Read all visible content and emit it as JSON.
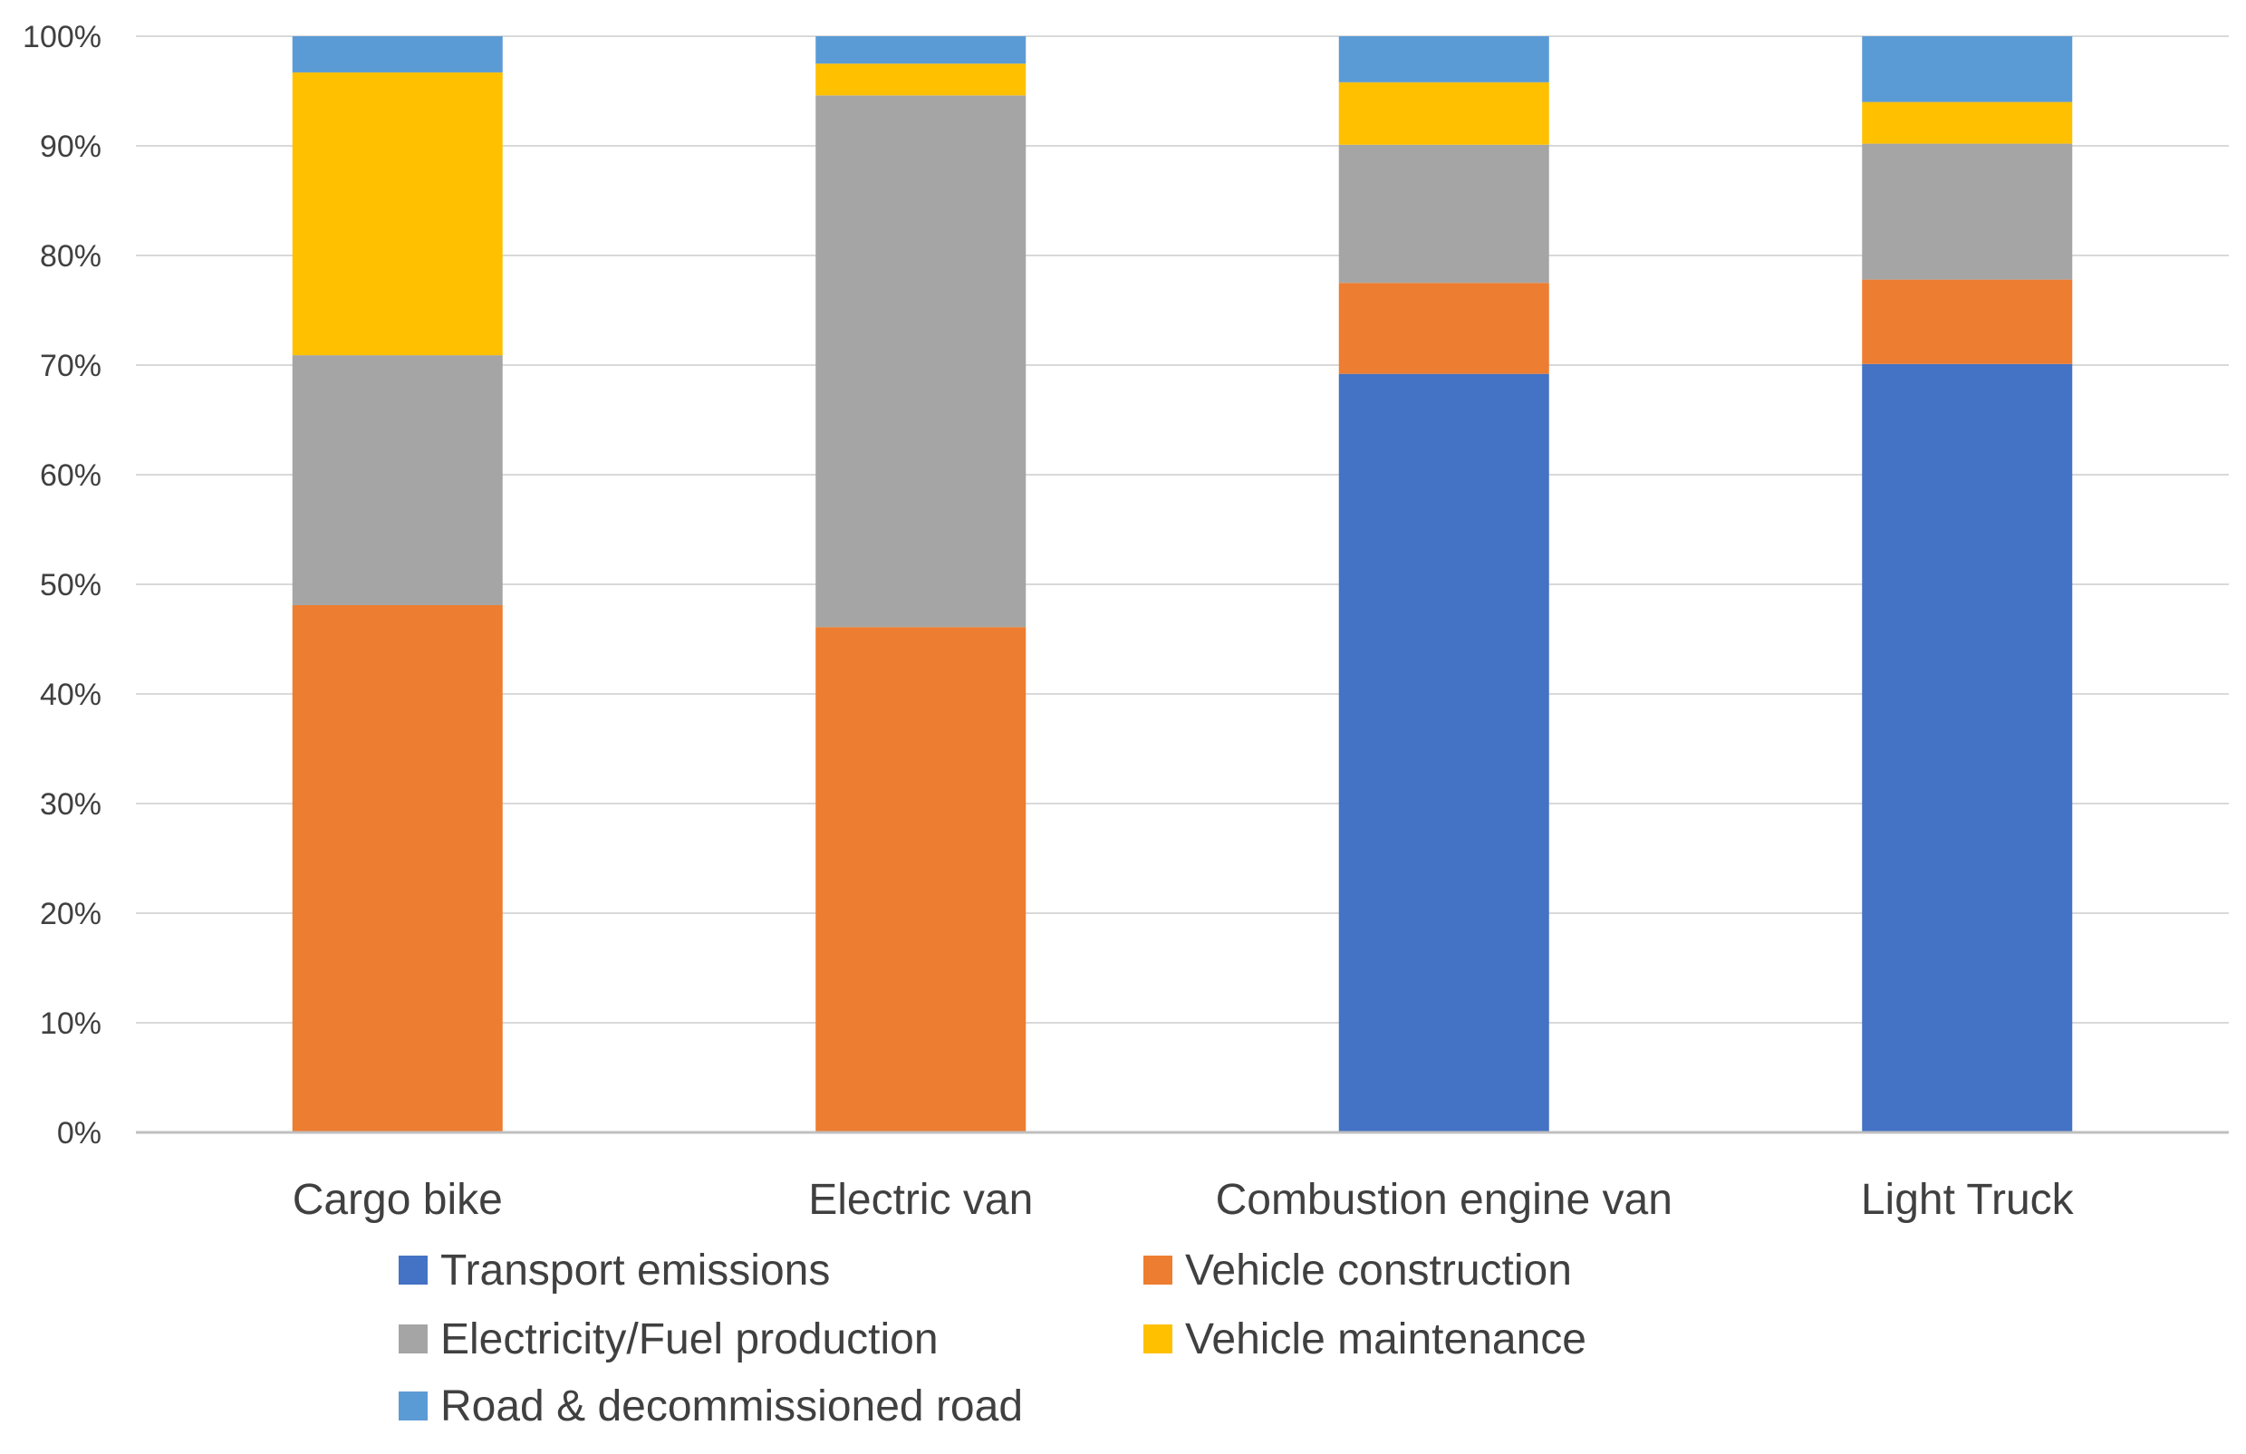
{
  "chart_data": {
    "type": "bar",
    "stacked": true,
    "percent_stacked": true,
    "title": "",
    "xlabel": "",
    "ylabel": "",
    "ylim": [
      0,
      100
    ],
    "y_ticks": [
      "0%",
      "10%",
      "20%",
      "30%",
      "40%",
      "50%",
      "60%",
      "70%",
      "80%",
      "90%",
      "100%"
    ],
    "y_tick_values": [
      0,
      10,
      20,
      30,
      40,
      50,
      60,
      70,
      80,
      90,
      100
    ],
    "grid": true,
    "legend_position": "bottom",
    "categories": [
      "Cargo bike",
      "Electric van",
      "Combustion engine van",
      "Light Truck"
    ],
    "series": [
      {
        "name": "Transport emissions",
        "color": "#4472C4",
        "values": [
          0,
          0,
          69.2,
          70.1
        ]
      },
      {
        "name": "Vehicle construction",
        "color": "#ED7D31",
        "values": [
          48.1,
          46.1,
          8.3,
          7.7
        ]
      },
      {
        "name": "Electricity/Fuel production",
        "color": "#A5A5A5",
        "values": [
          22.8,
          48.5,
          12.6,
          12.4
        ]
      },
      {
        "name": "Vehicle maintenance",
        "color": "#FFC000",
        "values": [
          25.8,
          2.9,
          5.7,
          3.8
        ]
      },
      {
        "name": "Road & decommissioned road",
        "color": "#5B9BD5",
        "values": [
          3.3,
          2.5,
          4.2,
          6.0
        ]
      }
    ]
  }
}
